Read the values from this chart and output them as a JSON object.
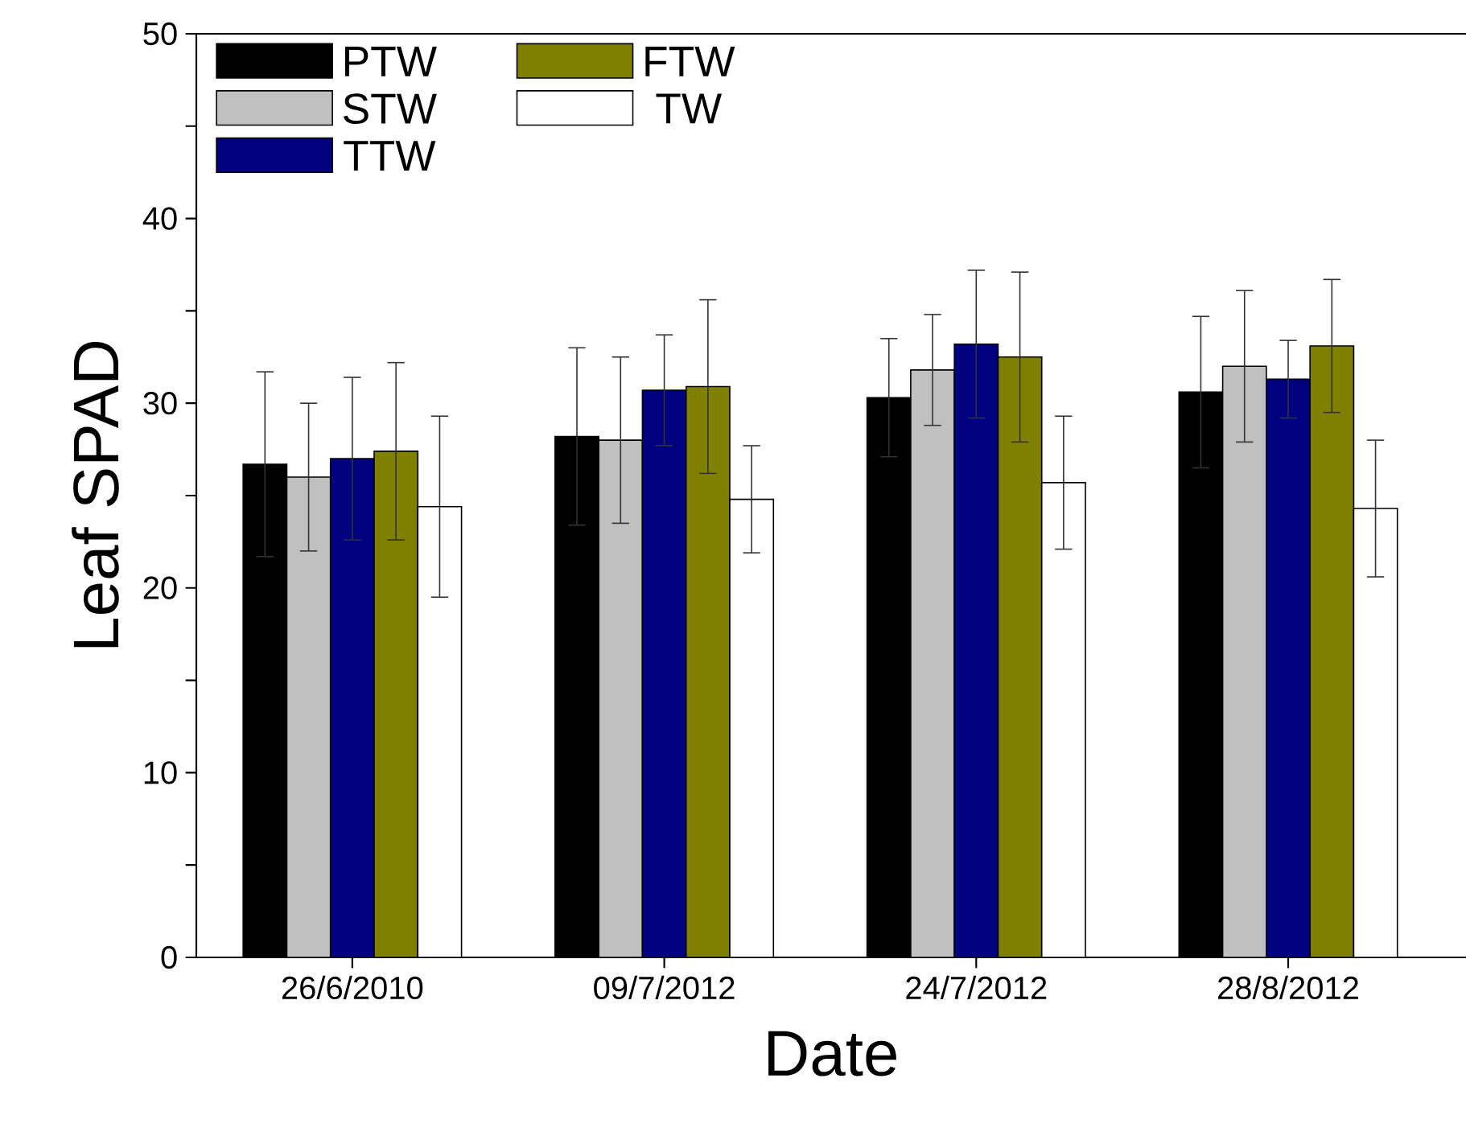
{
  "chart_data": {
    "type": "bar",
    "xlabel": "Date",
    "ylabel": "Leaf SPAD",
    "categories": [
      "26/6/2010",
      "09/7/2012",
      "24/7/2012",
      "28/8/2012"
    ],
    "series": [
      {
        "name": "PTW",
        "color": "#000000",
        "values": [
          26.7,
          28.2,
          30.3,
          30.6
        ],
        "errors": [
          5.0,
          4.8,
          3.2,
          4.1
        ]
      },
      {
        "name": "STW",
        "color": "#c0c0c0",
        "values": [
          26.0,
          28.0,
          31.8,
          32.0
        ],
        "errors": [
          4.0,
          4.5,
          3.0,
          4.1
        ]
      },
      {
        "name": "TTW",
        "color": "#000080",
        "values": [
          27.0,
          30.7,
          33.2,
          31.3
        ],
        "errors": [
          4.4,
          3.0,
          4.0,
          2.1
        ]
      },
      {
        "name": "FTW",
        "color": "#808000",
        "values": [
          27.4,
          30.9,
          32.5,
          33.1
        ],
        "errors": [
          4.8,
          4.7,
          4.6,
          3.6
        ]
      },
      {
        "name": "TW",
        "color": "#ffffff",
        "values": [
          24.4,
          24.8,
          25.7,
          24.3
        ],
        "errors": [
          4.9,
          2.9,
          3.6,
          3.7
        ]
      }
    ],
    "ylim": [
      0,
      50
    ],
    "yticks": [
      0,
      {
        "value": 5,
        "label": null
      },
      10,
      {
        "value": 15,
        "label": null
      },
      20,
      {
        "value": 25,
        "label": null
      },
      30,
      {
        "value": 35,
        "label": null
      },
      40,
      {
        "value": 45,
        "label": null
      },
      50
    ],
    "grid": false,
    "legend": "top left"
  }
}
